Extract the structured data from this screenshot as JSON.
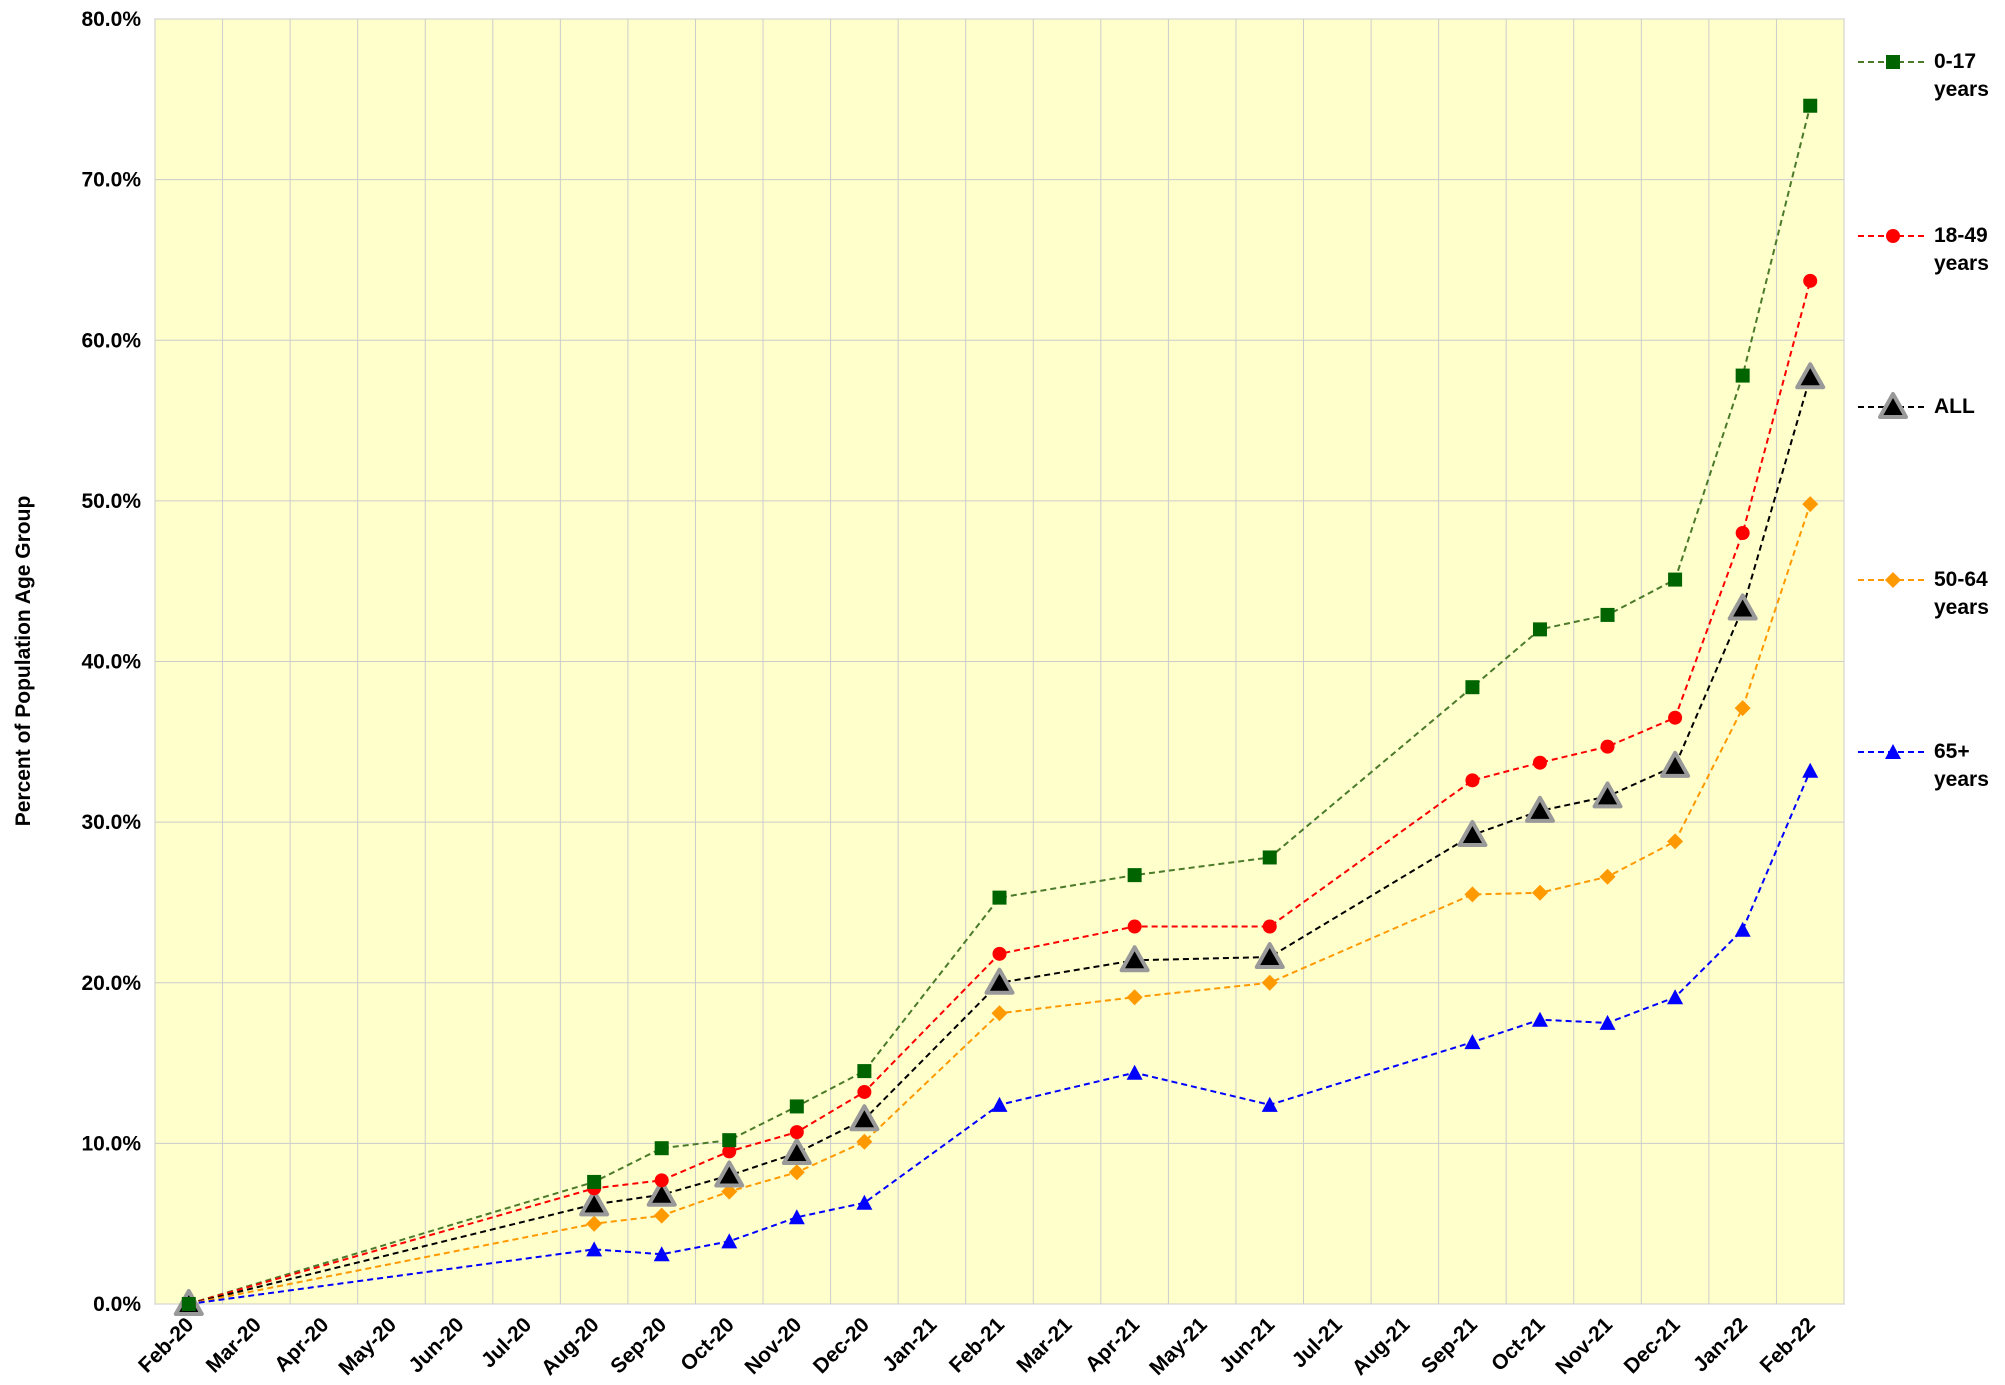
{
  "chart_data": {
    "type": "line",
    "ylabel": "Percent of Population Age Group",
    "categories": [
      "Feb-20",
      "Mar-20",
      "Apr-20",
      "May-20",
      "Jun-20",
      "Jul-20",
      "Aug-20",
      "Sep-20",
      "Oct-20",
      "Nov-20",
      "Dec-20",
      "Jan-21",
      "Feb-21",
      "Mar-21",
      "Apr-21",
      "May-21",
      "Jun-21",
      "Jul-21",
      "Aug-21",
      "Sep-21",
      "Oct-21",
      "Nov-21",
      "Dec-21",
      "Jan-22",
      "Feb-22"
    ],
    "x": [
      "Feb-20",
      "Aug-20",
      "Sep-20",
      "Oct-20",
      "Nov-20",
      "Dec-20",
      "Feb-21",
      "Apr-21",
      "Jun-21",
      "Sep-21",
      "Oct-21",
      "Nov-21",
      "Dec-21",
      "Jan-22",
      "Feb-22"
    ],
    "series": [
      {
        "name": "0-17 years",
        "color": "#006400",
        "line_color": "#4a7a2a",
        "marker": "square",
        "values": [
          0,
          7.6,
          9.7,
          10.2,
          12.3,
          14.5,
          25.3,
          26.7,
          27.8,
          38.4,
          42.0,
          42.9,
          45.1,
          57.8,
          74.6
        ]
      },
      {
        "name": "18-49 years",
        "color": "#ff0000",
        "line_color": "#ff0000",
        "marker": "circle",
        "values": [
          0,
          7.2,
          7.7,
          9.5,
          10.7,
          13.2,
          21.8,
          23.5,
          23.5,
          32.6,
          33.7,
          34.7,
          36.5,
          48.0,
          63.7
        ]
      },
      {
        "name": "ALL",
        "color": "#000000",
        "line_color": "#000000",
        "marker": "triangle-big",
        "values": [
          0,
          6.2,
          6.8,
          8.0,
          9.4,
          11.5,
          20.0,
          21.4,
          21.6,
          29.2,
          30.7,
          31.6,
          33.5,
          43.3,
          57.7
        ]
      },
      {
        "name": "50-64 years",
        "color": "#ff9900",
        "line_color": "#ff9900",
        "marker": "diamond",
        "values": [
          0,
          5.0,
          5.5,
          7.0,
          8.2,
          10.1,
          18.1,
          19.1,
          20.0,
          25.5,
          25.6,
          26.6,
          28.8,
          37.1,
          49.8
        ]
      },
      {
        "name": "65+ years",
        "color": "#0000ff",
        "line_color": "#0000ff",
        "marker": "triangle",
        "values": [
          0,
          3.4,
          3.1,
          3.9,
          5.4,
          6.3,
          12.4,
          14.4,
          12.4,
          16.3,
          17.7,
          17.5,
          19.1,
          23.3,
          33.2
        ]
      }
    ],
    "ylim": [
      0,
      80
    ],
    "yticks": [
      {
        "value": 0,
        "label": "0.0%"
      },
      {
        "value": 10,
        "label": "10.0%"
      },
      {
        "value": 20,
        "label": "20.0%"
      },
      {
        "value": 30,
        "label": "30.0%"
      },
      {
        "value": 40,
        "label": "40.0%"
      },
      {
        "value": 50,
        "label": "50.0%"
      },
      {
        "value": 60,
        "label": "60.0%"
      },
      {
        "value": 70,
        "label": "70.0%"
      },
      {
        "value": 80,
        "label": "80.0%"
      }
    ],
    "grid": true,
    "background": "#ffffcc",
    "legend": "right"
  }
}
